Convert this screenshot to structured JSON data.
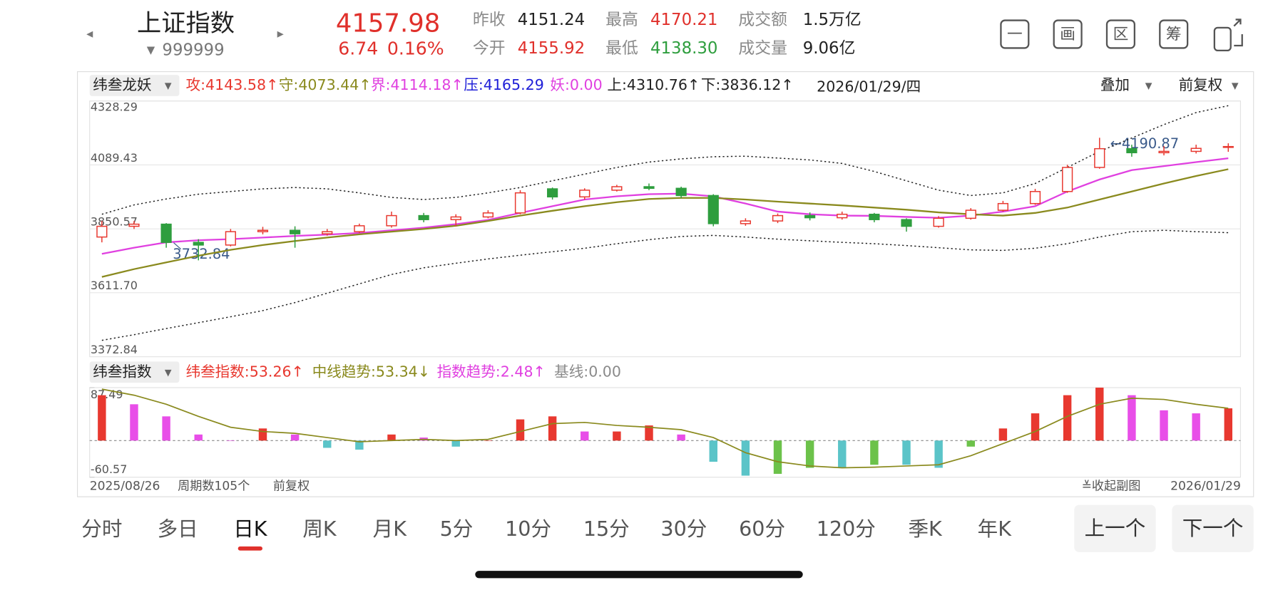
{
  "header": {
    "name": "上证指数",
    "code": "999999",
    "price": "4157.98",
    "change": "6.74",
    "change_pct": "0.16%",
    "stats": [
      {
        "label": "昨收",
        "value": "4151.24"
      },
      {
        "label": "最高",
        "value": "4170.21"
      },
      {
        "label": "成交额",
        "value": "1.5万亿"
      },
      {
        "label": "今开",
        "value": "4155.92"
      },
      {
        "label": "最低",
        "value": "4138.30"
      },
      {
        "label": "成交量",
        "value": "9.06亿"
      }
    ],
    "toolbar": [
      "一",
      "画",
      "区",
      "筹"
    ]
  },
  "chart_data": {
    "type": "candlestick",
    "indicator_name": "纬叁龙妖",
    "legend": [
      {
        "text": "攻:4143.58↑",
        "color": "#e8382f"
      },
      {
        "text": "守:4073.44↑",
        "color": "#8a8a1e"
      },
      {
        "text": "界:4114.18↑",
        "color": "#e040e0"
      },
      {
        "text": "压:4165.29",
        "color": "#2020d8"
      },
      {
        "text": "妖:0.00",
        "color": "#e040e0"
      },
      {
        "text": "上:4310.76↑",
        "color": "#222222"
      },
      {
        "text": "下:3836.12↑",
        "color": "#222222"
      }
    ],
    "date": "2026/01/29/四",
    "overlay": "叠加",
    "adjust": "前复权",
    "ylim": [
      3372.84,
      4328.29
    ],
    "yticks": [
      {
        "value": 4328.29,
        "label": "4328.29"
      },
      {
        "value": 4089.43,
        "label": "4089.43"
      },
      {
        "value": 3850.57,
        "label": "3850.57"
      },
      {
        "value": 3611.7,
        "label": "3611.70"
      },
      {
        "value": 3372.84,
        "label": "3372.84"
      }
    ],
    "up_color": "#e8382f",
    "down_color": "#2e9e3e",
    "candles": [
      [
        3820,
        3860,
        3880,
        3800
      ],
      [
        3860,
        3868,
        3880,
        3850
      ],
      [
        3868,
        3800,
        3872,
        3780
      ],
      [
        3800,
        3790,
        3812,
        3732.84
      ],
      [
        3790,
        3840,
        3850,
        3785
      ],
      [
        3840,
        3845,
        3858,
        3830
      ],
      [
        3845,
        3832,
        3860,
        3780
      ],
      [
        3832,
        3840,
        3850,
        3825
      ],
      [
        3840,
        3862,
        3870,
        3835
      ],
      [
        3862,
        3900,
        3915,
        3855
      ],
      [
        3900,
        3885,
        3910,
        3875
      ],
      [
        3885,
        3895,
        3905,
        3860
      ],
      [
        3895,
        3910,
        3920,
        3890
      ],
      [
        3910,
        3985,
        3995,
        3905
      ],
      [
        4000,
        3970,
        4005,
        3960
      ],
      [
        3970,
        3995,
        4002,
        3960
      ],
      [
        3995,
        4008,
        4015,
        3990
      ],
      [
        4008,
        4002,
        4020,
        3995
      ],
      [
        4002,
        3975,
        4008,
        3965
      ],
      [
        3975,
        3870,
        3980,
        3860
      ],
      [
        3870,
        3880,
        3890,
        3862
      ],
      [
        3880,
        3900,
        3908,
        3872
      ],
      [
        3900,
        3892,
        3912,
        3882
      ],
      [
        3892,
        3905,
        3915,
        3885
      ],
      [
        3905,
        3885,
        3910,
        3875
      ],
      [
        3885,
        3860,
        3890,
        3840
      ],
      [
        3860,
        3890,
        3898,
        3855
      ],
      [
        3890,
        3920,
        3928,
        3885
      ],
      [
        3920,
        3945,
        3955,
        3915
      ],
      [
        3945,
        3990,
        4000,
        3940
      ],
      [
        3990,
        4080,
        4090,
        3985
      ],
      [
        4080,
        4150,
        4190.87,
        4075
      ],
      [
        4150,
        4135,
        4165,
        4120
      ],
      [
        4135,
        4140,
        4160,
        4125
      ],
      [
        4140,
        4151.24,
        4165,
        4132
      ],
      [
        4155.92,
        4157.98,
        4170.21,
        4138.3
      ]
    ],
    "lines": [
      {
        "color": "#e040e0",
        "dash": "",
        "values": [
          3757,
          3780,
          3800,
          3808,
          3812,
          3818,
          3824,
          3829,
          3835,
          3845,
          3855,
          3868,
          3884,
          3910,
          3935,
          3960,
          3972,
          3980,
          3982,
          3972,
          3945,
          3915,
          3905,
          3900,
          3899,
          3895,
          3892,
          3900,
          3915,
          3935,
          3990,
          4035,
          4070,
          4085,
          4100,
          4114.18
        ]
      },
      {
        "color": "#8a8a1e",
        "dash": "",
        "values": [
          3671,
          3700,
          3725,
          3750,
          3772,
          3790,
          3805,
          3818,
          3830,
          3840,
          3850,
          3862,
          3880,
          3900,
          3918,
          3935,
          3950,
          3962,
          3966,
          3966,
          3960,
          3952,
          3945,
          3938,
          3930,
          3922,
          3912,
          3905,
          3900,
          3910,
          3930,
          3960,
          3990,
          4020,
          4048,
          4073.44
        ]
      },
      {
        "color": "#222222",
        "dash": "2 3",
        "values": [
          3905,
          3940,
          3962,
          3980,
          3990,
          4000,
          4005,
          4000,
          3985,
          3968,
          3960,
          3968,
          3985,
          4005,
          4030,
          4055,
          4080,
          4100,
          4112,
          4120,
          4122,
          4115,
          4108,
          4095,
          4065,
          4030,
          3995,
          3975,
          3985,
          4020,
          4080,
          4140,
          4190,
          4240,
          4285,
          4310.76
        ]
      },
      {
        "color": "#222222",
        "dash": "2 3",
        "values": [
          3434,
          3455,
          3478,
          3500,
          3522,
          3545,
          3575,
          3610,
          3645,
          3680,
          3705,
          3722,
          3738,
          3752,
          3765,
          3778,
          3795,
          3810,
          3822,
          3826,
          3820,
          3812,
          3806,
          3800,
          3795,
          3788,
          3780,
          3772,
          3770,
          3778,
          3795,
          3820,
          3840,
          3845,
          3840,
          3836.12
        ]
      }
    ],
    "annotations": [
      "←4190.87",
      "3732.84"
    ],
    "oscillator": {
      "name": "纬叁指数",
      "legend": [
        {
          "text": "纬叁指数:53.26↑",
          "color": "#e8382f"
        },
        {
          "text": "中线趋势:53.34↓",
          "color": "#8a8a1e"
        },
        {
          "text": "指数趋势:2.48↑",
          "color": "#e040e0"
        },
        {
          "text": "基线:0.00",
          "color": "#8a8a8a"
        }
      ],
      "ylim": [
        -60.57,
        87.49
      ],
      "yticks": [
        87.49,
        -60.57
      ],
      "baseline": 0,
      "colors": {
        "pos_up": "#e8382f",
        "pos_down": "#e84ee8",
        "neg_down": "#5bc4c8",
        "neg_up": "#6cc24a"
      },
      "values": [
        75,
        60,
        40,
        10,
        0,
        20,
        10,
        -12,
        -15,
        10,
        5,
        -10,
        0,
        35,
        40,
        15,
        15,
        25,
        10,
        -35,
        -58,
        -55,
        -45,
        -45,
        -40,
        -40,
        -45,
        -10,
        20,
        45,
        75,
        87.49,
        75,
        50,
        45,
        53.26
      ],
      "line": {
        "color": "#8a8a1e",
        "values": [
          85,
          75,
          60,
          40,
          22,
          15,
          12,
          5,
          -2,
          0,
          2,
          0,
          2,
          15,
          28,
          30,
          25,
          22,
          18,
          5,
          -20,
          -35,
          -42,
          -45,
          -44,
          -42,
          -40,
          -25,
          -5,
          15,
          40,
          60,
          70,
          68,
          60,
          53.34
        ]
      }
    },
    "footer": {
      "start": "2025/08/26",
      "periods": "周期数105个",
      "adjust": "前复权",
      "collapse": "≚收起副图",
      "end": "2026/01/29"
    }
  },
  "tabs": {
    "items": [
      "分时",
      "多日",
      "日K",
      "周K",
      "月K",
      "5分",
      "10分",
      "15分",
      "30分",
      "60分",
      "120分",
      "季K",
      "年K"
    ],
    "selected": 2,
    "prev": "上一个",
    "next": "下一个"
  }
}
